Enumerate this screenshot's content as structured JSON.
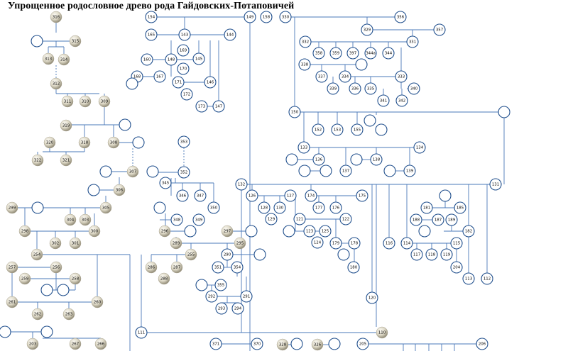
{
  "title": "Упрощенное родословное древо рода Гайдовских-Потаповичей",
  "colors": {
    "line": "#4a78b8",
    "circle_stroke": "#1f4e8c",
    "circle_fill": "#ffffff",
    "ball_light": "#f4f1e8",
    "ball_dark": "#8c8672",
    "text": "#000000"
  },
  "persons": [
    {
      "id": "316",
      "type": "ball"
    },
    {
      "id": "315",
      "type": "ball"
    },
    {
      "id": "313",
      "type": "ball"
    },
    {
      "id": "314",
      "type": "ball"
    },
    {
      "id": "312",
      "type": "ball"
    },
    {
      "id": "311",
      "type": "ball"
    },
    {
      "id": "310",
      "type": "ball"
    },
    {
      "id": "309",
      "type": "ball"
    },
    {
      "id": "319",
      "type": "ball"
    },
    {
      "id": "320",
      "type": "ball"
    },
    {
      "id": "318",
      "type": "ball"
    },
    {
      "id": "308",
      "type": "ball"
    },
    {
      "id": "322",
      "type": "ball"
    },
    {
      "id": "321",
      "type": "ball"
    },
    {
      "id": "307",
      "type": "ball"
    },
    {
      "id": "306",
      "type": "ball"
    },
    {
      "id": "305",
      "type": "ball"
    },
    {
      "id": "299",
      "type": "ball"
    },
    {
      "id": "304",
      "type": "ball"
    },
    {
      "id": "303",
      "type": "ball"
    },
    {
      "id": "298",
      "type": "ball"
    },
    {
      "id": "300",
      "type": "ball"
    },
    {
      "id": "302",
      "type": "ball"
    },
    {
      "id": "301",
      "type": "ball"
    },
    {
      "id": "254",
      "type": "ball"
    },
    {
      "id": "257",
      "type": "ball"
    },
    {
      "id": "256",
      "type": "ball"
    },
    {
      "id": "259",
      "type": "ball"
    },
    {
      "id": "258",
      "type": "ball"
    },
    {
      "id": "261",
      "type": "ball"
    },
    {
      "id": "260",
      "type": "ball"
    },
    {
      "id": "262",
      "type": "ball"
    },
    {
      "id": "263",
      "type": "ball"
    },
    {
      "id": "203",
      "type": "ball"
    },
    {
      "id": "267",
      "type": "ball"
    },
    {
      "id": "266",
      "type": "ball"
    },
    {
      "id": "296",
      "type": "ball"
    },
    {
      "id": "297",
      "type": "ball"
    },
    {
      "id": "295",
      "type": "ball"
    },
    {
      "id": "289",
      "type": "ball"
    },
    {
      "id": "255",
      "type": "ball"
    },
    {
      "id": "286",
      "type": "ball"
    },
    {
      "id": "287",
      "type": "ball"
    },
    {
      "id": "288",
      "type": "ball"
    },
    {
      "id": "110",
      "type": "ball"
    },
    {
      "id": "328",
      "type": "ball"
    },
    {
      "id": "326",
      "type": "ball"
    },
    {
      "id": "154",
      "type": "circle"
    },
    {
      "id": "149",
      "type": "circle"
    },
    {
      "id": "158",
      "type": "circle"
    },
    {
      "id": "165",
      "type": "circle"
    },
    {
      "id": "143",
      "type": "circle"
    },
    {
      "id": "144",
      "type": "circle"
    },
    {
      "id": "169",
      "type": "circle"
    },
    {
      "id": "160",
      "type": "circle"
    },
    {
      "id": "148",
      "type": "circle"
    },
    {
      "id": "145",
      "type": "circle"
    },
    {
      "id": "170",
      "type": "circle"
    },
    {
      "id": "168",
      "type": "circle"
    },
    {
      "id": "167",
      "type": "circle"
    },
    {
      "id": "171",
      "type": "circle"
    },
    {
      "id": "146",
      "type": "circle"
    },
    {
      "id": "172",
      "type": "circle"
    },
    {
      "id": "173",
      "type": "circle"
    },
    {
      "id": "147",
      "type": "circle"
    },
    {
      "id": "330",
      "type": "circle"
    },
    {
      "id": "356",
      "type": "circle"
    },
    {
      "id": "329",
      "type": "circle"
    },
    {
      "id": "357",
      "type": "circle"
    },
    {
      "id": "332",
      "type": "circle"
    },
    {
      "id": "331",
      "type": "circle"
    },
    {
      "id": "358",
      "type": "circle"
    },
    {
      "id": "359",
      "type": "circle"
    },
    {
      "id": "397",
      "type": "circle"
    },
    {
      "id": "344a",
      "type": "circle"
    },
    {
      "id": "344",
      "type": "circle"
    },
    {
      "id": "338",
      "type": "circle"
    },
    {
      "id": "337",
      "type": "circle"
    },
    {
      "id": "334",
      "type": "circle"
    },
    {
      "id": "333",
      "type": "circle"
    },
    {
      "id": "339",
      "type": "circle"
    },
    {
      "id": "336",
      "type": "circle"
    },
    {
      "id": "335",
      "type": "circle"
    },
    {
      "id": "340",
      "type": "circle"
    },
    {
      "id": "341",
      "type": "circle"
    },
    {
      "id": "342",
      "type": "circle"
    },
    {
      "id": "150",
      "type": "circle"
    },
    {
      "id": "152",
      "type": "circle"
    },
    {
      "id": "153",
      "type": "circle"
    },
    {
      "id": "155",
      "type": "circle"
    },
    {
      "id": "134",
      "type": "circle"
    },
    {
      "id": "133",
      "type": "circle"
    },
    {
      "id": "136",
      "type": "circle"
    },
    {
      "id": "138",
      "type": "circle"
    },
    {
      "id": "137",
      "type": "circle"
    },
    {
      "id": "139",
      "type": "circle"
    },
    {
      "id": "353",
      "type": "circle"
    },
    {
      "id": "352",
      "type": "circle"
    },
    {
      "id": "345",
      "type": "circle"
    },
    {
      "id": "346",
      "type": "circle"
    },
    {
      "id": "347",
      "type": "circle"
    },
    {
      "id": "350",
      "type": "circle"
    },
    {
      "id": "348",
      "type": "circle"
    },
    {
      "id": "349",
      "type": "circle"
    },
    {
      "id": "132",
      "type": "circle"
    },
    {
      "id": "131",
      "type": "circle"
    },
    {
      "id": "126",
      "type": "circle"
    },
    {
      "id": "127",
      "type": "circle"
    },
    {
      "id": "128",
      "type": "circle"
    },
    {
      "id": "130",
      "type": "circle"
    },
    {
      "id": "129",
      "type": "circle"
    },
    {
      "id": "174",
      "type": "circle"
    },
    {
      "id": "175",
      "type": "circle"
    },
    {
      "id": "177",
      "type": "circle"
    },
    {
      "id": "176",
      "type": "circle"
    },
    {
      "id": "121",
      "type": "circle"
    },
    {
      "id": "122",
      "type": "circle"
    },
    {
      "id": "123",
      "type": "circle"
    },
    {
      "id": "125",
      "type": "circle"
    },
    {
      "id": "124",
      "type": "circle"
    },
    {
      "id": "179",
      "type": "circle"
    },
    {
      "id": "178",
      "type": "circle"
    },
    {
      "id": "180",
      "type": "circle"
    },
    {
      "id": "181",
      "type": "circle"
    },
    {
      "id": "185",
      "type": "circle"
    },
    {
      "id": "188",
      "type": "circle"
    },
    {
      "id": "187",
      "type": "circle"
    },
    {
      "id": "189",
      "type": "circle"
    },
    {
      "id": "182",
      "type": "circle"
    },
    {
      "id": "116",
      "type": "circle"
    },
    {
      "id": "114",
      "type": "circle"
    },
    {
      "id": "115",
      "type": "circle"
    },
    {
      "id": "117",
      "type": "circle"
    },
    {
      "id": "118",
      "type": "circle"
    },
    {
      "id": "119",
      "type": "circle"
    },
    {
      "id": "204",
      "type": "circle"
    },
    {
      "id": "113",
      "type": "circle"
    },
    {
      "id": "112",
      "type": "circle"
    },
    {
      "id": "120",
      "type": "circle"
    },
    {
      "id": "290",
      "type": "circle"
    },
    {
      "id": "351",
      "type": "circle"
    },
    {
      "id": "354",
      "type": "circle"
    },
    {
      "id": "355",
      "type": "circle"
    },
    {
      "id": "292",
      "type": "circle"
    },
    {
      "id": "291",
      "type": "circle"
    },
    {
      "id": "293",
      "type": "circle"
    },
    {
      "id": "294",
      "type": "circle"
    },
    {
      "id": "111",
      "type": "circle"
    },
    {
      "id": "371",
      "type": "circle"
    },
    {
      "id": "370",
      "type": "circle"
    },
    {
      "id": "205",
      "type": "circle"
    },
    {
      "id": "206",
      "type": "circle"
    },
    {
      "id": "",
      "type": "circle"
    }
  ]
}
